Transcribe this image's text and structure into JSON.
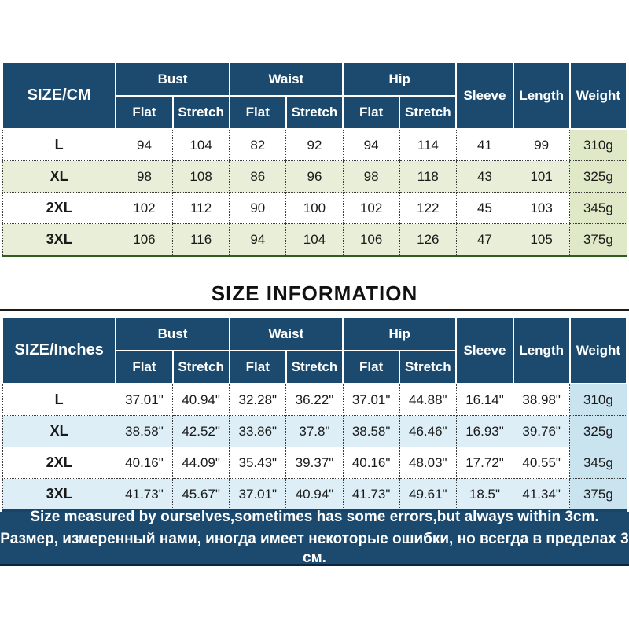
{
  "title": "SIZE INFORMATION",
  "headers": {
    "bust": "Bust",
    "waist": "Waist",
    "hip": "Hip",
    "flat": "Flat",
    "stretch": "Stretch",
    "sleeve": "Sleeve",
    "length": "Length",
    "weight": "Weight"
  },
  "cm_table": {
    "corner": "SIZE/CM",
    "rows": [
      {
        "size": "L",
        "v": [
          "94",
          "104",
          "82",
          "92",
          "94",
          "114",
          "41",
          "99",
          "310g"
        ]
      },
      {
        "size": "XL",
        "v": [
          "98",
          "108",
          "86",
          "96",
          "98",
          "118",
          "43",
          "101",
          "325g"
        ]
      },
      {
        "size": "2XL",
        "v": [
          "102",
          "112",
          "90",
          "100",
          "102",
          "122",
          "45",
          "103",
          "345g"
        ]
      },
      {
        "size": "3XL",
        "v": [
          "106",
          "116",
          "94",
          "104",
          "106",
          "126",
          "47",
          "105",
          "375g"
        ]
      }
    ]
  },
  "inch_table": {
    "corner": "SIZE/Inches",
    "rows": [
      {
        "size": "L",
        "v": [
          "37.01\"",
          "40.94\"",
          "32.28\"",
          "36.22\"",
          "37.01\"",
          "44.88\"",
          "16.14\"",
          "38.98\"",
          "310g"
        ]
      },
      {
        "size": "XL",
        "v": [
          "38.58\"",
          "42.52\"",
          "33.86\"",
          "37.8\"",
          "38.58\"",
          "46.46\"",
          "16.93\"",
          "39.76\"",
          "325g"
        ]
      },
      {
        "size": "2XL",
        "v": [
          "40.16\"",
          "44.09\"",
          "35.43\"",
          "39.37\"",
          "40.16\"",
          "48.03\"",
          "17.72\"",
          "40.55\"",
          "345g"
        ]
      },
      {
        "size": "3XL",
        "v": [
          "41.73\"",
          "45.67\"",
          "37.01\"",
          "40.94\"",
          "41.73\"",
          "49.61\"",
          "18.5\"",
          "41.34\"",
          "375g"
        ]
      }
    ]
  },
  "footer": {
    "line1": "Size measured by ourselves,sometimes has some errors,but always within 3cm.",
    "line2": "Размер, измеренный нами, иногда имеет некоторые ошибки, но всегда в пределах 3 см."
  },
  "colors": {
    "header_navy": "#1b4a6e",
    "cm_row_green": "#e9eed8",
    "cm_weight_green": "#dfe8c7",
    "cm_bottom_border_green": "#2f5d1f",
    "inch_row_blue": "#ddeef6",
    "inch_weight_blue": "#c9e3ef",
    "inch_bottom_border_navy": "#17456a",
    "footer_navy": "#1b4a6e",
    "rule_black": "#1a1a1a"
  }
}
